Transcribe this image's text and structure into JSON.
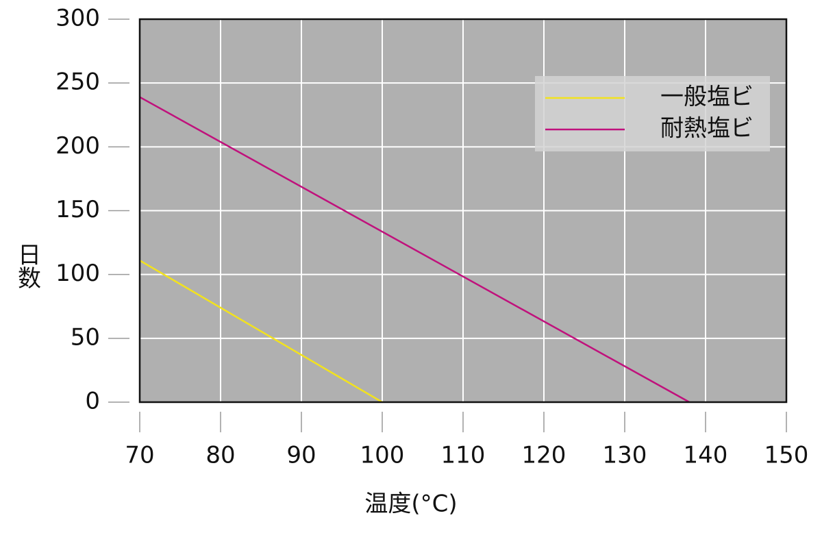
{
  "chart_data": {
    "type": "line",
    "xlabel": "温度(°C)",
    "ylabel": "日数",
    "xlim": [
      70,
      150
    ],
    "xticks": [
      70,
      80,
      90,
      100,
      110,
      120,
      130,
      140,
      150
    ],
    "ylim": [
      0,
      300
    ],
    "yticks": [
      0,
      50,
      100,
      150,
      200,
      250,
      300
    ],
    "grid": true,
    "legend": "upper right",
    "series": [
      {
        "name": "一般塩ビ",
        "color": "#f2e21e",
        "x": [
          70,
          100
        ],
        "values": [
          111,
          0
        ]
      },
      {
        "name": "耐熱塩ビ",
        "color": "#c0117c",
        "x": [
          70,
          138
        ],
        "values": [
          239,
          0
        ]
      }
    ]
  }
}
